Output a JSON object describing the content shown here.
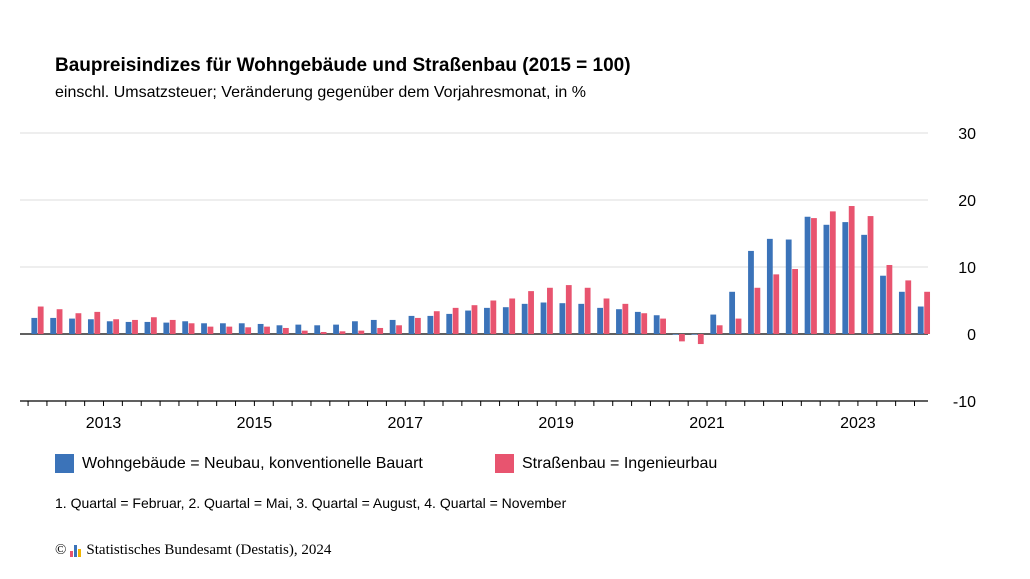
{
  "title": "Baupreisindizes für Wohngebäude und Straßenbau (2015 = 100)",
  "subtitle": "einschl. Umsatzsteuer; Veränderung gegenüber dem Vorjahresmonat, in %",
  "note": "1. Quartal = Februar, 2. Quartal = Mai, 3. Quartal = August, 4. Quartal = November",
  "footer": {
    "copyright_symbol": "©",
    "text": "Statistisches Bundesamt (Destatis), 2024"
  },
  "colors": {
    "wohngebaeude": "#3b73b9",
    "strassenbau": "#e8546f",
    "logo": [
      "#e8546f",
      "#3b73b9",
      "#f0b400"
    ]
  },
  "chart_data": {
    "type": "bar",
    "ylim": [
      -10,
      30
    ],
    "yticks": [
      -10,
      0,
      10,
      20,
      30
    ],
    "y_axis_position": "right",
    "grid": true,
    "legend_position": "bottom-left",
    "categories": [
      "2012 Q1",
      "2012 Q2",
      "2012 Q3",
      "2012 Q4",
      "2013 Q1",
      "2013 Q2",
      "2013 Q3",
      "2013 Q4",
      "2014 Q1",
      "2014 Q2",
      "2014 Q3",
      "2014 Q4",
      "2015 Q1",
      "2015 Q2",
      "2015 Q3",
      "2015 Q4",
      "2016 Q1",
      "2016 Q2",
      "2016 Q3",
      "2016 Q4",
      "2017 Q1",
      "2017 Q2",
      "2017 Q3",
      "2017 Q4",
      "2018 Q1",
      "2018 Q2",
      "2018 Q3",
      "2018 Q4",
      "2019 Q1",
      "2019 Q2",
      "2019 Q3",
      "2019 Q4",
      "2020 Q1",
      "2020 Q2",
      "2020 Q3",
      "2020 Q4",
      "2021 Q1",
      "2021 Q2",
      "2021 Q3",
      "2021 Q4",
      "2022 Q1",
      "2022 Q2",
      "2022 Q3",
      "2022 Q4",
      "2023 Q1",
      "2023 Q2",
      "2023 Q3",
      "2023 Q4"
    ],
    "x_tick_labels": [
      {
        "label": "2013",
        "category": "2013 Q1"
      },
      {
        "label": "2015",
        "category": "2015 Q1"
      },
      {
        "label": "2017",
        "category": "2017 Q1"
      },
      {
        "label": "2019",
        "category": "2019 Q1"
      },
      {
        "label": "2021",
        "category": "2021 Q1"
      },
      {
        "label": "2023",
        "category": "2023 Q1"
      }
    ],
    "series": [
      {
        "name": "Wohngebäude = Neubau, konventionelle Bauart",
        "values": [
          2.4,
          2.4,
          2.3,
          2.2,
          1.9,
          1.8,
          1.8,
          1.7,
          1.9,
          1.6,
          1.6,
          1.6,
          1.5,
          1.3,
          1.4,
          1.3,
          1.4,
          1.9,
          2.1,
          2.1,
          2.7,
          2.7,
          3.0,
          3.5,
          3.9,
          4.0,
          4.5,
          4.7,
          4.6,
          4.5,
          3.9,
          3.7,
          3.3,
          2.8,
          -0.1,
          0.0,
          2.9,
          6.3,
          12.4,
          14.2,
          14.1,
          17.5,
          16.3,
          16.7,
          14.8,
          8.7,
          6.3,
          4.1
        ]
      },
      {
        "name": "Straßenbau = Ingenieurbau",
        "values": [
          4.1,
          3.7,
          3.1,
          3.3,
          2.2,
          2.1,
          2.5,
          2.1,
          1.6,
          1.1,
          1.1,
          1.0,
          1.1,
          0.9,
          0.5,
          0.3,
          0.4,
          0.5,
          0.9,
          1.3,
          2.4,
          3.4,
          3.9,
          4.3,
          5.0,
          5.3,
          6.4,
          6.9,
          7.3,
          6.9,
          5.3,
          4.5,
          3.1,
          2.3,
          -1.1,
          -1.5,
          1.3,
          2.3,
          6.9,
          8.9,
          9.7,
          17.3,
          18.3,
          19.1,
          17.6,
          10.3,
          8.0,
          6.3
        ]
      }
    ]
  }
}
